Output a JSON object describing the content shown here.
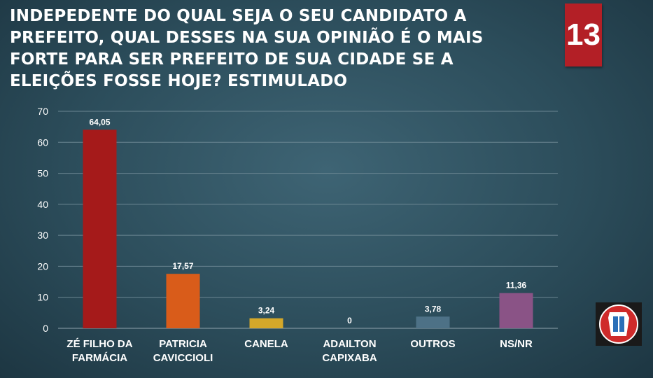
{
  "slide": {
    "title": "INDEPEDENTE DO QUAL SEJA O SEU CANDIDATO A PREFEITO, QUAL DESSES NA SUA OPINIÃO É O MAIS FORTE PARA SER PREFEITO DE SUA CIDADE SE A ELEIÇÕES FOSSE HOJE? ESTIMULADO",
    "number": "13"
  },
  "logo": {
    "icon": "logo-emblem"
  },
  "chart_data": {
    "type": "bar",
    "categories": [
      [
        "ZÉ FILHO DA",
        "FARMÁCIA"
      ],
      [
        "PATRICIA",
        "CAVICCIOLI"
      ],
      [
        "CANELA"
      ],
      [
        "ADAILTON",
        "CAPIXABA"
      ],
      [
        "OUTROS"
      ],
      [
        "NS/NR"
      ]
    ],
    "values": [
      64.05,
      17.57,
      3.24,
      0,
      3.78,
      11.36
    ],
    "value_labels": [
      "64,05",
      "17,57",
      "3,24",
      "0",
      "3,78",
      "11,36"
    ],
    "colors": [
      "#a51a1a",
      "#d95c1a",
      "#d4a82a",
      "#9aa0a6",
      "#4d7186",
      "#8a5386"
    ],
    "ylim": [
      0,
      70
    ],
    "yticks": [
      0,
      10,
      20,
      30,
      40,
      50,
      60,
      70
    ],
    "grid": true
  }
}
